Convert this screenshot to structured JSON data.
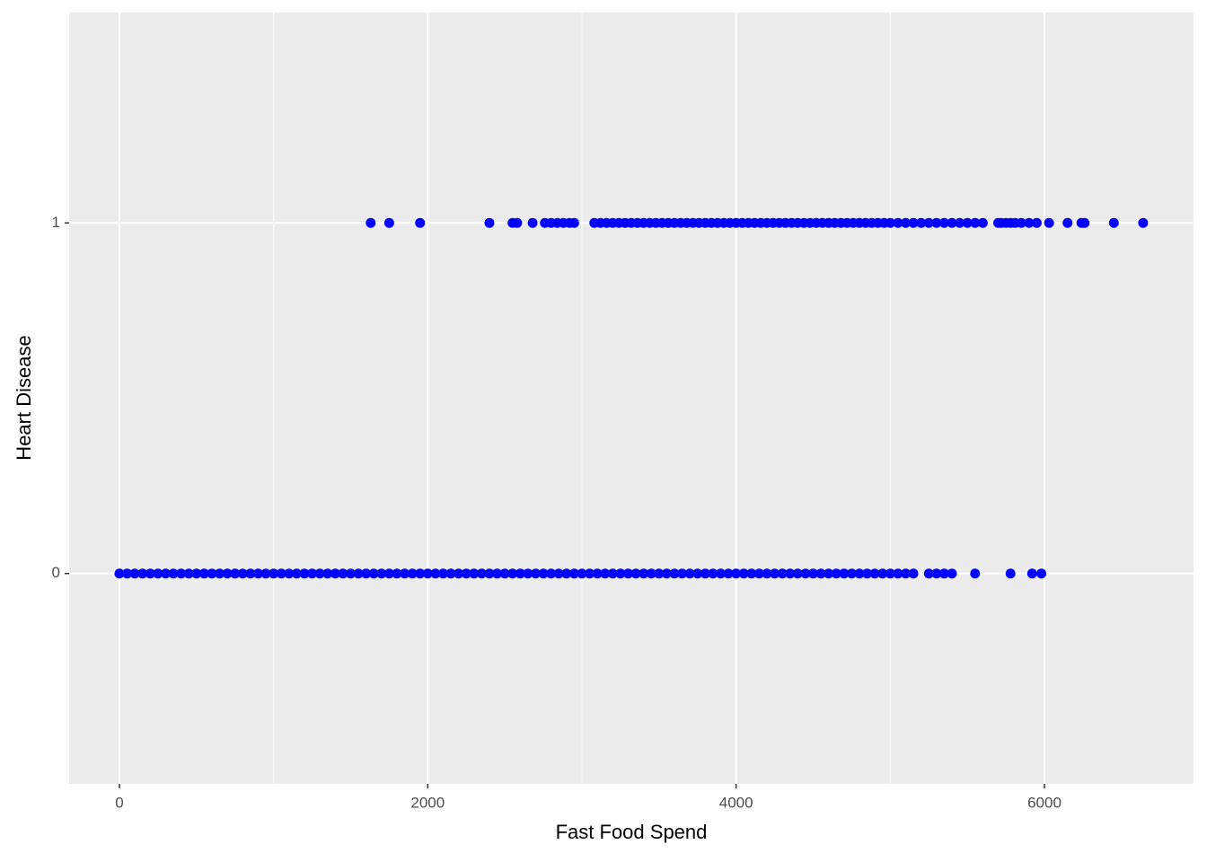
{
  "chart_data": {
    "type": "scatter",
    "x_label": "Fast Food Spend",
    "y_label": "Heart Disease",
    "xlim": [
      -326,
      6967
    ],
    "ylim": [
      -0.6,
      1.6
    ],
    "xticks": [
      0,
      2000,
      4000,
      6000
    ],
    "xminor": [
      1000,
      3000,
      5000
    ],
    "yticks": [
      0,
      1
    ],
    "grid": true,
    "series": [
      {
        "color": "#0000ff",
        "x": [
          0,
          50,
          100,
          150,
          200,
          250,
          300,
          350,
          400,
          450,
          500,
          550,
          600,
          650,
          700,
          750,
          800,
          850,
          900,
          950,
          1000,
          1050,
          1100,
          1150,
          1200,
          1250,
          1300,
          1350,
          1400,
          1450,
          1500,
          1550,
          1600,
          1650,
          1700,
          1750,
          1800,
          1850,
          1900,
          1950,
          2000,
          2050,
          2100,
          2150,
          2200,
          2250,
          2300,
          2350,
          2400,
          2450,
          2500,
          2550,
          2600,
          2650,
          2700,
          2750,
          2800,
          2850,
          2900,
          2950,
          3000,
          3050,
          3100,
          3150,
          3200,
          3250,
          3300,
          3350,
          3400,
          3450,
          3500,
          3550,
          3600,
          3650,
          3700,
          3750,
          3800,
          3850,
          3900,
          3950,
          4000,
          4050,
          4100,
          4150,
          4200,
          4250,
          4300,
          4350,
          4400,
          4450,
          4500,
          4550,
          4600,
          4650,
          4700,
          4750,
          4800,
          4850,
          4900,
          4950,
          5000,
          5050,
          5100,
          5150,
          5250,
          5300,
          5350,
          5400,
          5550,
          5780,
          5920,
          5980
        ],
        "values": [
          0,
          0,
          0,
          0,
          0,
          0,
          0,
          0,
          0,
          0,
          0,
          0,
          0,
          0,
          0,
          0,
          0,
          0,
          0,
          0,
          0,
          0,
          0,
          0,
          0,
          0,
          0,
          0,
          0,
          0,
          0,
          0,
          0,
          0,
          0,
          0,
          0,
          0,
          0,
          0,
          0,
          0,
          0,
          0,
          0,
          0,
          0,
          0,
          0,
          0,
          0,
          0,
          0,
          0,
          0,
          0,
          0,
          0,
          0,
          0,
          0,
          0,
          0,
          0,
          0,
          0,
          0,
          0,
          0,
          0,
          0,
          0,
          0,
          0,
          0,
          0,
          0,
          0,
          0,
          0,
          0,
          0,
          0,
          0,
          0,
          0,
          0,
          0,
          0,
          0,
          0,
          0,
          0,
          0,
          0,
          0,
          0,
          0,
          0,
          0,
          0,
          0,
          0,
          0,
          0,
          0,
          0,
          0,
          0,
          0,
          0,
          0
        ]
      },
      {
        "color": "#0000ff",
        "x": [
          1630,
          1750,
          1950,
          2400,
          2550,
          2580,
          2680,
          2760,
          2800,
          2840,
          2880,
          2920,
          2950,
          3080,
          3120,
          3160,
          3200,
          3240,
          3280,
          3320,
          3360,
          3400,
          3440,
          3480,
          3520,
          3560,
          3600,
          3640,
          3680,
          3720,
          3760,
          3800,
          3840,
          3880,
          3920,
          3960,
          4000,
          4040,
          4080,
          4120,
          4160,
          4200,
          4240,
          4280,
          4320,
          4360,
          4400,
          4440,
          4480,
          4520,
          4560,
          4600,
          4640,
          4680,
          4720,
          4760,
          4800,
          4840,
          4880,
          4920,
          4960,
          5000,
          5050,
          5100,
          5150,
          5200,
          5250,
          5300,
          5350,
          5400,
          5450,
          5500,
          5550,
          5600,
          5700,
          5720,
          5750,
          5780,
          5810,
          5850,
          5900,
          5950,
          6030,
          6150,
          6240,
          6260,
          6450,
          6640
        ],
        "values": [
          1,
          1,
          1,
          1,
          1,
          1,
          1,
          1,
          1,
          1,
          1,
          1,
          1,
          1,
          1,
          1,
          1,
          1,
          1,
          1,
          1,
          1,
          1,
          1,
          1,
          1,
          1,
          1,
          1,
          1,
          1,
          1,
          1,
          1,
          1,
          1,
          1,
          1,
          1,
          1,
          1,
          1,
          1,
          1,
          1,
          1,
          1,
          1,
          1,
          1,
          1,
          1,
          1,
          1,
          1,
          1,
          1,
          1,
          1,
          1,
          1,
          1,
          1,
          1,
          1,
          1,
          1,
          1,
          1,
          1,
          1,
          1,
          1,
          1,
          1,
          1,
          1,
          1,
          1,
          1,
          1,
          1,
          1,
          1,
          1,
          1,
          1,
          1
        ]
      }
    ]
  }
}
